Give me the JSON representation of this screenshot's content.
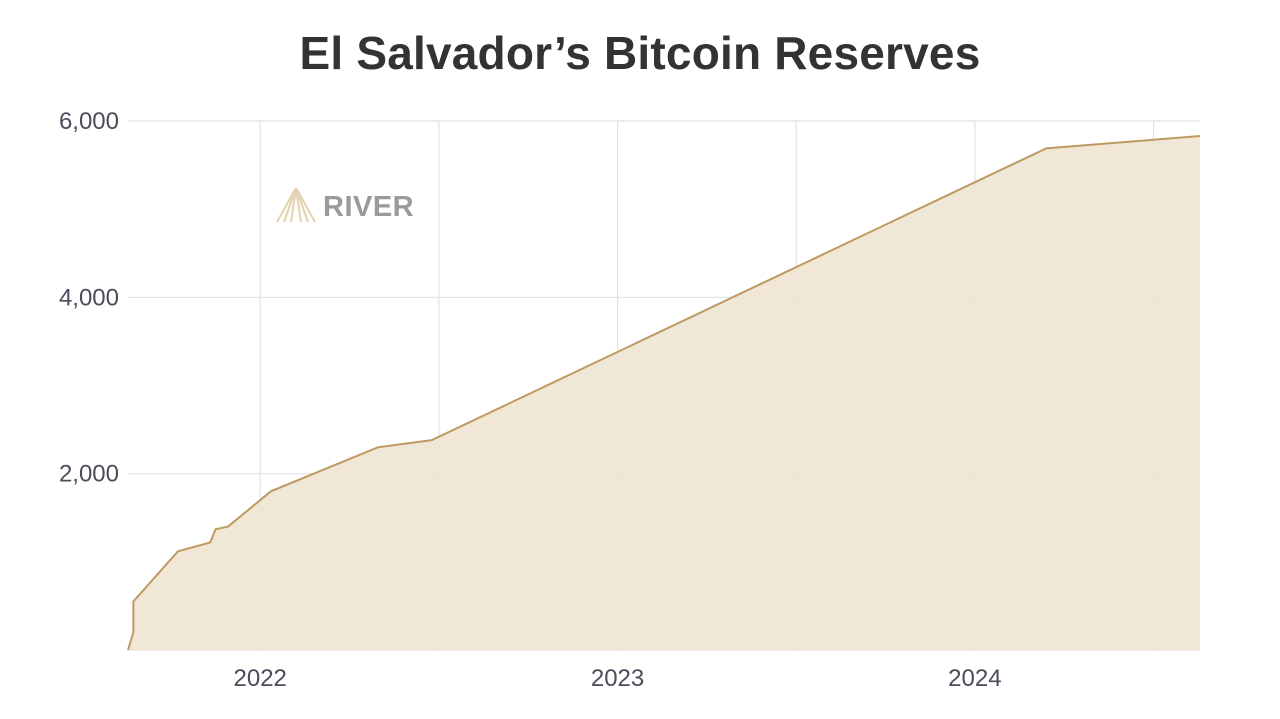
{
  "chart_data": {
    "type": "area",
    "title": "El Salvador’s Bitcoin Reserves",
    "xlabel": "",
    "ylabel": "",
    "x_ticks": [
      {
        "label": "2022",
        "t": 2022.0
      },
      {
        "label": "2023",
        "t": 2023.0
      },
      {
        "label": "2024",
        "t": 2024.0
      }
    ],
    "y_ticks": [
      {
        "label": "2,000",
        "value": 2000
      },
      {
        "label": "4,000",
        "value": 4000
      },
      {
        "label": "6,000",
        "value": 6000
      }
    ],
    "xlim": [
      2021.63,
      2024.63
    ],
    "ylim": [
      0,
      6000
    ],
    "grid": true,
    "series": [
      {
        "x": [
          2021.63,
          2021.645,
          2021.645,
          2021.77,
          2021.86,
          2021.875,
          2021.91,
          2022.03,
          2022.33,
          2022.48,
          2024.2,
          2024.63
        ],
        "y": [
          0,
          200,
          550,
          1120,
          1220,
          1370,
          1400,
          1800,
          2300,
          2380,
          5690,
          5830
        ]
      }
    ],
    "colors": {
      "fill": "#ede3d0",
      "line": "#bf9a60",
      "grid": "#e2e2e2"
    },
    "watermark": {
      "text": "RIVER",
      "icon": "river-logo-icon"
    }
  }
}
